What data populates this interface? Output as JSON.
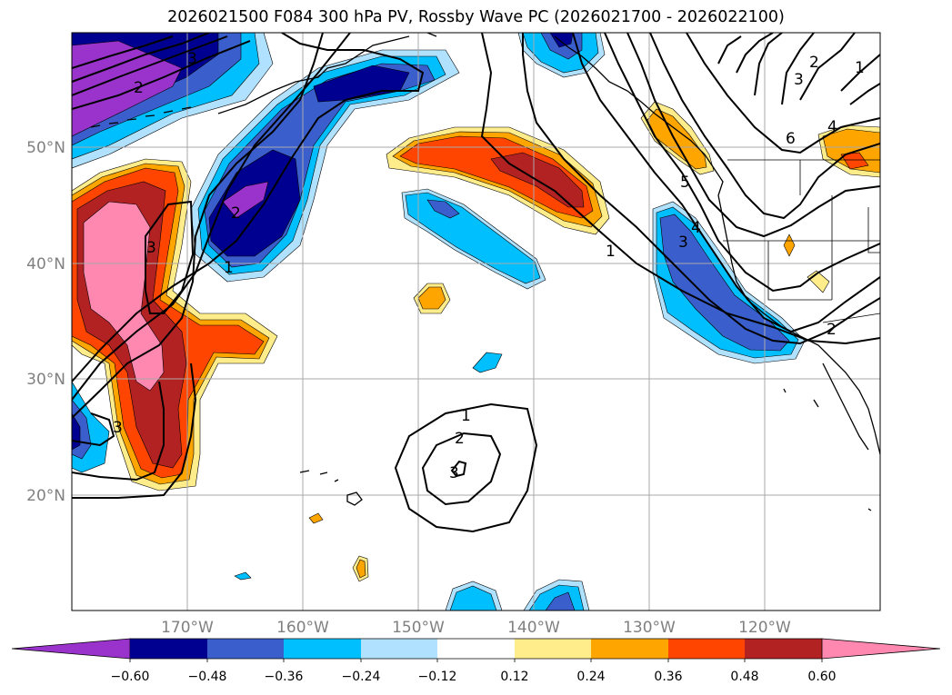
{
  "title": "2026021500 F084 300 hPa PV, Rossby Wave PC (2026021700 - 2026022100)",
  "map": {
    "lat_labels": [
      "50°N",
      "40°N",
      "30°N",
      "20°N"
    ],
    "lon_labels": [
      "170°W",
      "160°W",
      "150°W",
      "140°W",
      "130°W",
      "120°W"
    ],
    "contour_labels": [
      {
        "id": "c-2-nw",
        "text": "2"
      },
      {
        "id": "c-3-nw",
        "text": "3"
      },
      {
        "id": "c-3-w",
        "text": "3"
      },
      {
        "id": "c-2-w",
        "text": "2"
      },
      {
        "id": "c-1-w",
        "text": "1"
      },
      {
        "id": "c-3-sw",
        "text": "3"
      },
      {
        "id": "c-1-s",
        "text": "1"
      },
      {
        "id": "c-2-s",
        "text": "2"
      },
      {
        "id": "c-3-s",
        "text": "3"
      },
      {
        "id": "c-1-e",
        "text": "1"
      },
      {
        "id": "c-2-e",
        "text": "2"
      },
      {
        "id": "c-3-e",
        "text": "3"
      },
      {
        "id": "c-4-e",
        "text": "4"
      },
      {
        "id": "c-5-e",
        "text": "5"
      },
      {
        "id": "c-6-ne",
        "text": "6"
      },
      {
        "id": "c-4-ne",
        "text": "4"
      },
      {
        "id": "c-3-ne",
        "text": "3"
      },
      {
        "id": "c-2-ne",
        "text": "2"
      },
      {
        "id": "c-1-ne",
        "text": "1"
      }
    ]
  },
  "colorbar": {
    "labels": [
      "−0.60",
      "−0.48",
      "−0.36",
      "−0.24",
      "−0.12",
      "0.12",
      "0.24",
      "0.36",
      "0.48",
      "0.60"
    ],
    "bins": [
      {
        "range": "<-0.60",
        "color": "#9933cc"
      },
      {
        "range": "-0.60 to -0.48",
        "color": "#000090"
      },
      {
        "range": "-0.48 to -0.36",
        "color": "#3a5fcd"
      },
      {
        "range": "-0.36 to -0.24",
        "color": "#00bfff"
      },
      {
        "range": "-0.24 to -0.12",
        "color": "#b0e2ff"
      },
      {
        "range": "-0.12 to 0.12",
        "color": "#ffffff"
      },
      {
        "range": "0.12 to 0.24",
        "color": "#ffec8b"
      },
      {
        "range": "0.24 to 0.36",
        "color": "#ffa500"
      },
      {
        "range": "0.36 to 0.48",
        "color": "#ff4500"
      },
      {
        "range": "0.48 to 0.60",
        "color": "#b22222"
      },
      {
        "range": ">0.60",
        "color": "#ff88b0"
      }
    ]
  }
}
